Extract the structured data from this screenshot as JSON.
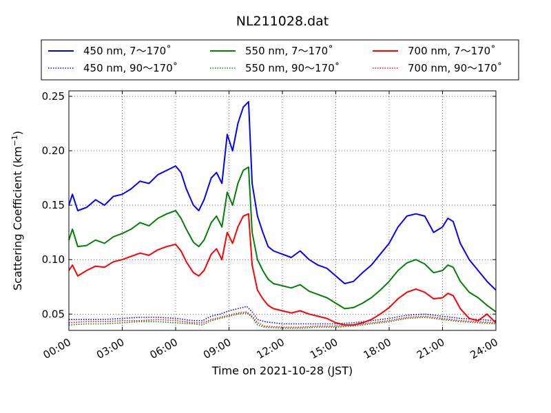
{
  "chart_data": {
    "type": "line",
    "title": "NL211028.dat",
    "xlabel": "Time on 2021-10-28 (JST)",
    "ylabel": "Scattering Coefficient (km",
    "ylabel_unit_exponent": "−1",
    "ylabel_suffix": ")",
    "xlim": [
      0,
      24
    ],
    "ylim": [
      0.035,
      0.255
    ],
    "x_ticks": [
      {
        "value": 0,
        "label": "00:00"
      },
      {
        "value": 3,
        "label": "03:00"
      },
      {
        "value": 6,
        "label": "06:00"
      },
      {
        "value": 9,
        "label": "09:00"
      },
      {
        "value": 12,
        "label": "12:00"
      },
      {
        "value": 15,
        "label": "15:00"
      },
      {
        "value": 18,
        "label": "18:00"
      },
      {
        "value": 21,
        "label": "21:00"
      },
      {
        "value": 24,
        "label": "24:00"
      }
    ],
    "y_ticks": [
      {
        "value": 0.05,
        "label": "0.05"
      },
      {
        "value": 0.1,
        "label": "0.10"
      },
      {
        "value": 0.15,
        "label": "0.15"
      },
      {
        "value": 0.2,
        "label": "0.20"
      },
      {
        "value": 0.25,
        "label": "0.25"
      }
    ],
    "grid": true,
    "legend_placement": "top, above plot",
    "series": [
      {
        "name": "450 nm, 7～170˚",
        "color": "#0000ff",
        "style": "solid",
        "x": [
          0,
          0.2,
          0.5,
          1,
          1.5,
          2,
          2.5,
          3,
          3.5,
          4,
          4.5,
          5,
          5.5,
          6,
          6.3,
          6.6,
          7,
          7.3,
          7.6,
          8,
          8.3,
          8.6,
          8.9,
          9.2,
          9.5,
          9.8,
          10.1,
          10.3,
          10.6,
          10.9,
          11.2,
          11.5,
          12,
          12.5,
          13,
          13.5,
          14,
          14.5,
          15,
          15.5,
          16,
          16.5,
          17,
          17.5,
          18,
          18.5,
          19,
          19.5,
          20,
          20.5,
          21,
          21.3,
          21.6,
          22,
          22.5,
          23,
          23.5,
          24
        ],
        "y": [
          0.15,
          0.16,
          0.145,
          0.148,
          0.155,
          0.15,
          0.158,
          0.16,
          0.165,
          0.172,
          0.17,
          0.178,
          0.182,
          0.186,
          0.18,
          0.165,
          0.15,
          0.145,
          0.155,
          0.175,
          0.18,
          0.17,
          0.215,
          0.2,
          0.225,
          0.24,
          0.245,
          0.17,
          0.14,
          0.125,
          0.112,
          0.108,
          0.105,
          0.102,
          0.108,
          0.1,
          0.095,
          0.092,
          0.085,
          0.078,
          0.08,
          0.088,
          0.095,
          0.105,
          0.115,
          0.13,
          0.14,
          0.142,
          0.14,
          0.125,
          0.13,
          0.138,
          0.135,
          0.115,
          0.1,
          0.09,
          0.08,
          0.072
        ]
      },
      {
        "name": "550 nm, 7～170˚",
        "color": "#008000",
        "style": "solid",
        "x": [
          0,
          0.2,
          0.5,
          1,
          1.5,
          2,
          2.5,
          3,
          3.5,
          4,
          4.5,
          5,
          5.5,
          6,
          6.3,
          6.6,
          7,
          7.3,
          7.6,
          8,
          8.3,
          8.6,
          8.9,
          9.2,
          9.5,
          9.8,
          10.1,
          10.3,
          10.6,
          10.9,
          11.2,
          11.5,
          12,
          12.5,
          13,
          13.5,
          14,
          14.5,
          15,
          15.5,
          16,
          16.5,
          17,
          17.5,
          18,
          18.5,
          19,
          19.5,
          20,
          20.5,
          21,
          21.3,
          21.6,
          22,
          22.5,
          23,
          23.5,
          24
        ],
        "y": [
          0.118,
          0.128,
          0.112,
          0.113,
          0.118,
          0.115,
          0.121,
          0.124,
          0.128,
          0.134,
          0.131,
          0.138,
          0.142,
          0.145,
          0.138,
          0.128,
          0.116,
          0.112,
          0.118,
          0.134,
          0.14,
          0.13,
          0.162,
          0.15,
          0.17,
          0.182,
          0.185,
          0.125,
          0.1,
          0.09,
          0.082,
          0.078,
          0.076,
          0.074,
          0.077,
          0.071,
          0.068,
          0.065,
          0.06,
          0.055,
          0.056,
          0.06,
          0.065,
          0.072,
          0.08,
          0.09,
          0.097,
          0.1,
          0.096,
          0.088,
          0.09,
          0.095,
          0.093,
          0.08,
          0.07,
          0.065,
          0.058,
          0.052
        ]
      },
      {
        "name": "700 nm, 7～170˚",
        "color": "#ff0000",
        "style": "solid",
        "x": [
          0,
          0.2,
          0.5,
          1,
          1.5,
          2,
          2.5,
          3,
          3.5,
          4,
          4.5,
          5,
          5.5,
          6,
          6.3,
          6.6,
          7,
          7.3,
          7.6,
          8,
          8.3,
          8.6,
          8.9,
          9.2,
          9.5,
          9.8,
          10.1,
          10.3,
          10.6,
          10.9,
          11.2,
          11.5,
          12,
          12.5,
          13,
          13.5,
          14,
          14.5,
          15,
          15.5,
          16,
          16.5,
          17,
          17.5,
          18,
          18.5,
          19,
          19.5,
          20,
          20.5,
          21,
          21.3,
          21.6,
          22,
          22.5,
          23,
          23.5,
          24
        ],
        "y": [
          0.09,
          0.095,
          0.085,
          0.09,
          0.094,
          0.093,
          0.098,
          0.1,
          0.103,
          0.106,
          0.104,
          0.109,
          0.112,
          0.114,
          0.108,
          0.098,
          0.088,
          0.085,
          0.09,
          0.105,
          0.11,
          0.1,
          0.125,
          0.115,
          0.13,
          0.14,
          0.142,
          0.095,
          0.072,
          0.064,
          0.058,
          0.055,
          0.053,
          0.051,
          0.053,
          0.05,
          0.048,
          0.046,
          0.042,
          0.04,
          0.04,
          0.042,
          0.045,
          0.05,
          0.056,
          0.064,
          0.07,
          0.073,
          0.07,
          0.064,
          0.065,
          0.069,
          0.067,
          0.055,
          0.046,
          0.044,
          0.05,
          0.042
        ]
      },
      {
        "name": "450 nm, 90～170˚",
        "color": "#0000ff",
        "style": "dotted",
        "x": [
          0,
          1,
          2,
          3,
          4,
          5,
          6,
          7,
          7.5,
          8,
          8.5,
          9,
          9.5,
          10,
          10.3,
          10.6,
          11,
          12,
          13,
          14,
          15,
          16,
          17,
          18,
          19,
          20,
          21,
          22,
          23,
          24
        ],
        "y": [
          0.045,
          0.045,
          0.045,
          0.046,
          0.047,
          0.047,
          0.046,
          0.044,
          0.044,
          0.048,
          0.05,
          0.053,
          0.055,
          0.057,
          0.052,
          0.045,
          0.043,
          0.041,
          0.041,
          0.041,
          0.041,
          0.042,
          0.044,
          0.046,
          0.049,
          0.05,
          0.048,
          0.046,
          0.045,
          0.044
        ]
      },
      {
        "name": "550 nm, 90～170˚",
        "color": "#008000",
        "style": "dotted",
        "x": [
          0,
          1,
          2,
          3,
          4,
          5,
          6,
          7,
          7.5,
          8,
          8.5,
          9,
          9.5,
          10,
          10.3,
          10.6,
          11,
          12,
          13,
          14,
          15,
          16,
          17,
          18,
          19,
          20,
          21,
          22,
          23,
          24
        ],
        "y": [
          0.04,
          0.041,
          0.041,
          0.042,
          0.043,
          0.043,
          0.042,
          0.041,
          0.04,
          0.044,
          0.046,
          0.048,
          0.05,
          0.051,
          0.047,
          0.04,
          0.038,
          0.037,
          0.037,
          0.038,
          0.038,
          0.039,
          0.041,
          0.043,
          0.046,
          0.047,
          0.045,
          0.043,
          0.042,
          0.041
        ]
      },
      {
        "name": "700 nm, 90～170˚",
        "color": "#ff0000",
        "style": "dotted",
        "x": [
          0,
          1,
          2,
          3,
          4,
          5,
          6,
          7,
          7.5,
          8,
          8.5,
          9,
          9.5,
          10,
          10.3,
          10.6,
          11,
          12,
          13,
          14,
          15,
          16,
          17,
          18,
          19,
          20,
          21,
          22,
          23,
          24
        ],
        "y": [
          0.042,
          0.043,
          0.043,
          0.044,
          0.044,
          0.045,
          0.044,
          0.042,
          0.042,
          0.045,
          0.047,
          0.049,
          0.051,
          0.052,
          0.048,
          0.042,
          0.039,
          0.038,
          0.038,
          0.039,
          0.039,
          0.04,
          0.042,
          0.044,
          0.047,
          0.048,
          0.046,
          0.044,
          0.043,
          0.042
        ]
      }
    ]
  }
}
